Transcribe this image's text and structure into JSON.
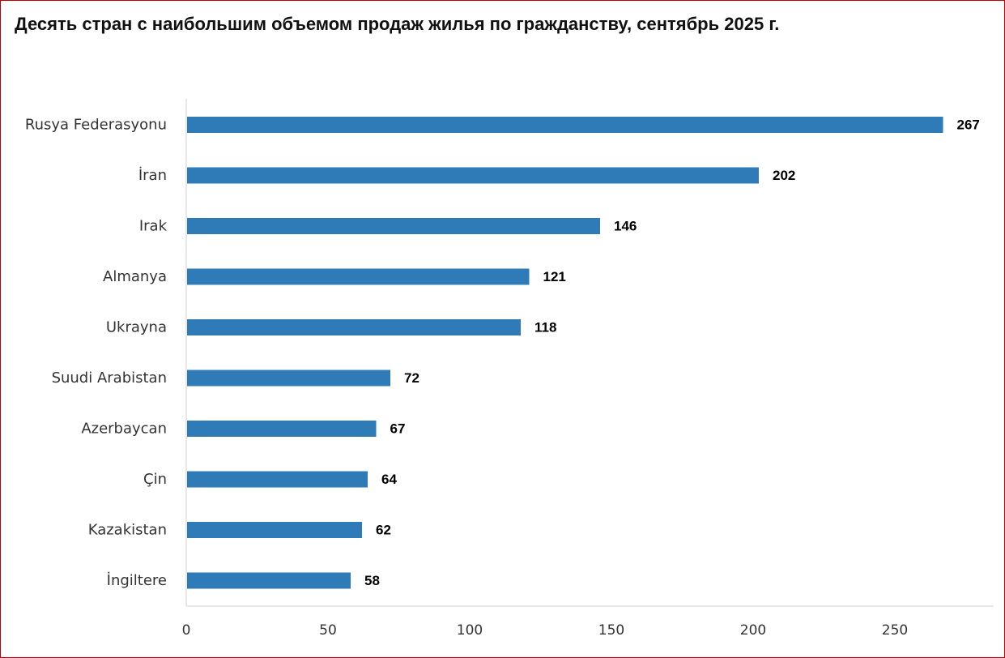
{
  "chart_data": {
    "type": "bar",
    "orientation": "horizontal",
    "title": "Десять стран с наибольшим объемом продаж жилья по гражданству, сентябрь 2025 г.",
    "categories": [
      "Rusya Federasyonu",
      "İran",
      "Irak",
      "Almanya",
      "Ukrayna",
      "Suudi Arabistan",
      "Azerbaycan",
      "Çin",
      "Kazakistan",
      "İngiltere"
    ],
    "values": [
      267,
      202,
      146,
      121,
      118,
      72,
      67,
      64,
      62,
      58
    ],
    "x_ticks": [
      "0",
      "50",
      "100",
      "150",
      "200",
      "250"
    ],
    "xlim": [
      0,
      285
    ],
    "xlabel": "",
    "ylabel": "",
    "data_labels": true,
    "grid": false,
    "bar_color": "#2e7bb8",
    "frame_color": "#c00000"
  }
}
